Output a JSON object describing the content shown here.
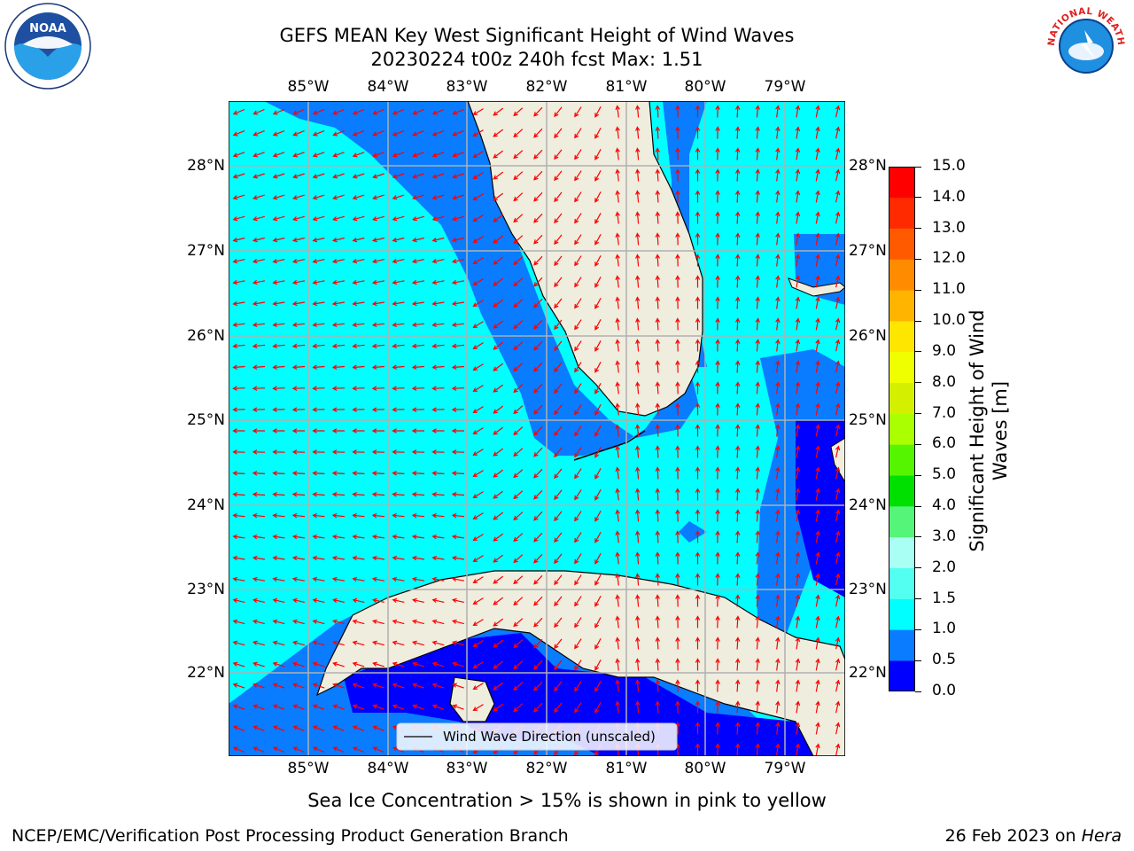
{
  "title": {
    "line1": "GEFS MEAN Key West Significant Height of Wind Waves",
    "line2": "20230224 t00z 240h fcst   Max: 1.51"
  },
  "map": {
    "lon_ticks": [
      "85°W",
      "84°W",
      "83°W",
      "82°W",
      "81°W",
      "80°W",
      "79°W"
    ],
    "lat_ticks": [
      "28°N",
      "27°N",
      "26°N",
      "25°N",
      "24°N",
      "23°N",
      "22°N"
    ],
    "colors": {
      "land": "#efedde",
      "coast": "#000000",
      "grid": "#b0b0b0",
      "arrow": "#ff0000"
    },
    "legend_label": "Wind Wave Direction (unscaled)"
  },
  "colorbar": {
    "title": "Significant Height of Wind\nWaves [m]",
    "tick_labels": [
      "15.0",
      "14.0",
      "13.0",
      "12.0",
      "11.0",
      "10.0",
      "9.0",
      "8.0",
      "7.0",
      "6.0",
      "5.0",
      "4.0",
      "3.0",
      "2.0",
      "1.5",
      "1.0",
      "0.5",
      "0.0"
    ],
    "levels": [
      0.0,
      0.5,
      1.0,
      1.5,
      2.0,
      3.0,
      4.0,
      5.0,
      6.0,
      7.0,
      8.0,
      9.0,
      10.0,
      11.0,
      12.0,
      13.0,
      14.0,
      15.0
    ],
    "band_colors": [
      "#0000ff",
      "#0a7cff",
      "#00ffff",
      "#52fff0",
      "#aafff4",
      "#55f57a",
      "#00e000",
      "#55f500",
      "#aaff00",
      "#d4f000",
      "#f0ff00",
      "#ffe600",
      "#ffb400",
      "#ff8c00",
      "#ff5a00",
      "#ff2a00",
      "#ff0000"
    ]
  },
  "notes": {
    "sea_ice": "Sea Ice Concentration > 15% is shown in pink to yellow",
    "credit": "NCEP/EMC/Verification Post Processing Product Generation Branch",
    "date": "26 Feb 2023 on ",
    "machine": "Hera"
  },
  "logos": {
    "noaa_text": "NOAA",
    "nws_text": "NATIONAL WEATHER SERVICE"
  }
}
